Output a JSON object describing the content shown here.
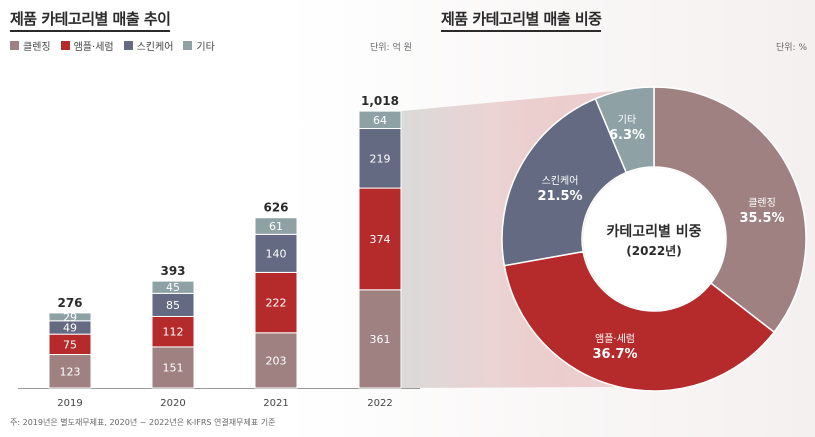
{
  "left_title": "제품 카테고리별 매출 추이",
  "right_title": "제품 카테고리별 매출 비중",
  "left_unit": "단위: 억 원",
  "right_unit": "단위: %",
  "footnote": "주: 2019년은 별도재무제표, 2020년 ~ 2022년은 K-IFRS 연결재무제표 기준",
  "colors": {
    "cleansing": "#9e8180",
    "ampoule_serum": "#b52a2b",
    "skincare": "#636a81",
    "other": "#8ea2a6"
  },
  "chart_data": [
    {
      "type": "bar",
      "stacked": true,
      "title": "제품 카테고리별 매출 추이",
      "ylabel": "억 원",
      "categories": [
        "2019",
        "2020",
        "2021",
        "2022"
      ],
      "series": [
        {
          "name": "클렌징",
          "values": [
            123,
            151,
            203,
            361
          ]
        },
        {
          "name": "앰플·세럼",
          "values": [
            75,
            112,
            222,
            374
          ]
        },
        {
          "name": "스킨케어",
          "values": [
            49,
            85,
            140,
            219
          ]
        },
        {
          "name": "기타",
          "values": [
            29,
            45,
            61,
            64
          ]
        }
      ],
      "totals": [
        "276",
        "393",
        "626",
        "1,018"
      ],
      "legend": "top-left"
    },
    {
      "type": "pie",
      "donut": true,
      "title": "제품 카테고리별 매출 비중",
      "center_label": "카테고리별 비중",
      "center_sublabel": "(2022년)",
      "slices": [
        {
          "name": "클렌징",
          "value": 35.5,
          "label": "35.5%"
        },
        {
          "name": "앰플·세럼",
          "value": 36.7,
          "label": "36.7%"
        },
        {
          "name": "스킨케어",
          "value": 21.5,
          "label": "21.5%"
        },
        {
          "name": "기타",
          "value": 6.3,
          "label": "6.3%"
        }
      ]
    }
  ]
}
